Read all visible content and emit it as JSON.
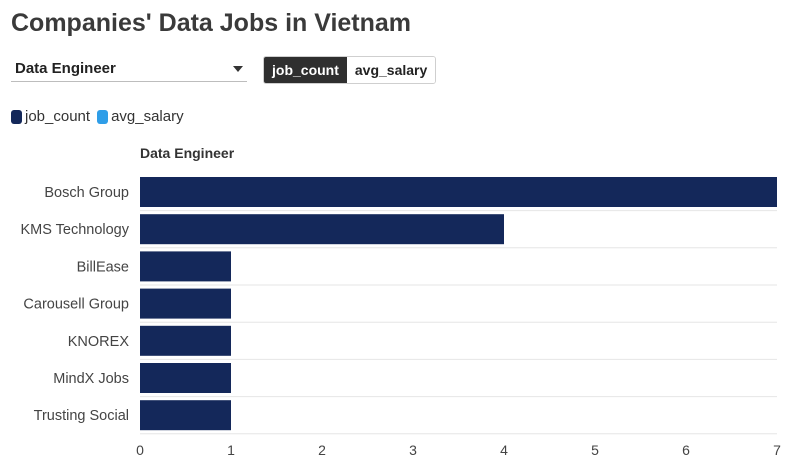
{
  "title": "Companies' Data Jobs in Vietnam",
  "role_select": {
    "value": "Data Engineer"
  },
  "metric_toggle": {
    "options": [
      "job_count",
      "avg_salary"
    ],
    "active": "job_count"
  },
  "legend": [
    {
      "label": "job_count",
      "color": "#14285a"
    },
    {
      "label": "avg_salary",
      "color": "#2f9ee8"
    }
  ],
  "chart_data": {
    "type": "bar",
    "orientation": "horizontal",
    "facet_title": "Data Engineer",
    "categories": [
      "Bosch Group",
      "KMS Technology",
      "BillEase",
      "Carousell Group",
      "KNOREX",
      "MindX Jobs",
      "Trusting Social"
    ],
    "series": [
      {
        "name": "job_count",
        "values": [
          7,
          4,
          1,
          1,
          1,
          1,
          1
        ],
        "color": "#14285a"
      }
    ],
    "xlim": [
      0,
      7
    ],
    "xticks": [
      0,
      1,
      2,
      3,
      4,
      5,
      6,
      7
    ],
    "grid": true,
    "legend_position": "top-left"
  }
}
